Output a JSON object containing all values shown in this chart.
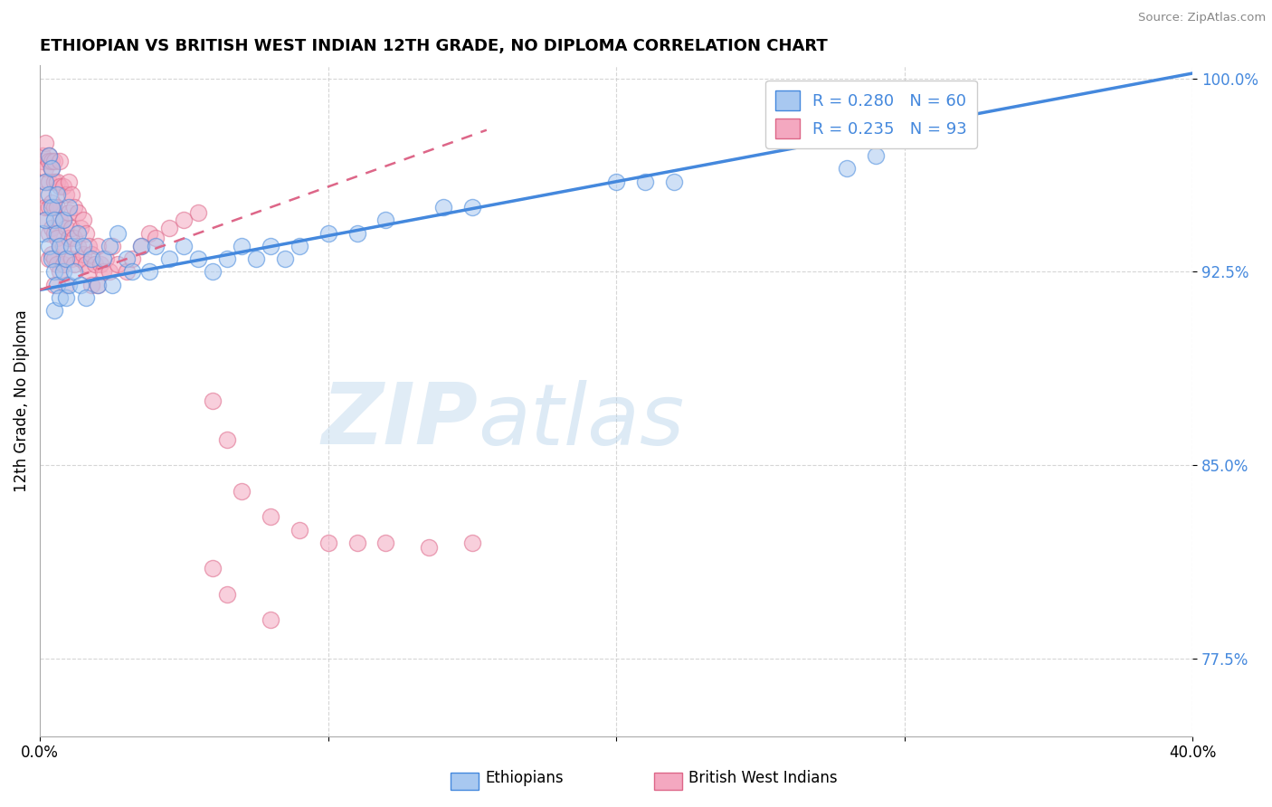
{
  "title": "ETHIOPIAN VS BRITISH WEST INDIAN 12TH GRADE, NO DIPLOMA CORRELATION CHART",
  "source": "Source: ZipAtlas.com",
  "xlabel_ethiopians": "Ethiopians",
  "xlabel_bwi": "British West Indians",
  "ylabel": "12th Grade, No Diploma",
  "xlim": [
    0.0,
    0.4
  ],
  "ylim": [
    0.745,
    1.005
  ],
  "xticks": [
    0.0,
    0.1,
    0.2,
    0.3,
    0.4
  ],
  "xtick_labels": [
    "0.0%",
    "",
    "",
    "",
    "40.0%"
  ],
  "ytick_labels": [
    "77.5%",
    "85.0%",
    "92.5%",
    "100.0%"
  ],
  "yticks": [
    0.775,
    0.85,
    0.925,
    1.0
  ],
  "R_ethiopian": 0.28,
  "N_ethiopian": 60,
  "R_bwi": 0.235,
  "N_bwi": 93,
  "ethiopian_color": "#A8C8F0",
  "bwi_color": "#F4A8C0",
  "trendline_ethiopian_color": "#4488DD",
  "trendline_bwi_color": "#DD6688",
  "watermark_zip": "ZIP",
  "watermark_atlas": "atlas",
  "grid_color": "#CCCCCC",
  "background_color": "#FFFFFF",
  "eth_trendline_x0": 0.0,
  "eth_trendline_y0": 0.918,
  "eth_trendline_x1": 0.4,
  "eth_trendline_y1": 1.002,
  "bwi_trendline_x0": 0.0,
  "bwi_trendline_y0": 0.918,
  "bwi_trendline_x1": 0.155,
  "bwi_trendline_y1": 0.98,
  "ethiopian_scatter_x": [
    0.001,
    0.002,
    0.002,
    0.003,
    0.003,
    0.003,
    0.004,
    0.004,
    0.004,
    0.005,
    0.005,
    0.005,
    0.006,
    0.006,
    0.006,
    0.007,
    0.007,
    0.008,
    0.008,
    0.009,
    0.009,
    0.01,
    0.01,
    0.011,
    0.012,
    0.013,
    0.014,
    0.015,
    0.016,
    0.018,
    0.02,
    0.022,
    0.024,
    0.025,
    0.027,
    0.03,
    0.032,
    0.035,
    0.038,
    0.04,
    0.045,
    0.05,
    0.055,
    0.06,
    0.065,
    0.07,
    0.075,
    0.08,
    0.085,
    0.09,
    0.1,
    0.11,
    0.12,
    0.14,
    0.15,
    0.2,
    0.21,
    0.22,
    0.28,
    0.29
  ],
  "ethiopian_scatter_y": [
    0.94,
    0.96,
    0.945,
    0.97,
    0.955,
    0.935,
    0.965,
    0.95,
    0.93,
    0.945,
    0.925,
    0.91,
    0.955,
    0.94,
    0.92,
    0.935,
    0.915,
    0.945,
    0.925,
    0.93,
    0.915,
    0.95,
    0.92,
    0.935,
    0.925,
    0.94,
    0.92,
    0.935,
    0.915,
    0.93,
    0.92,
    0.93,
    0.935,
    0.92,
    0.94,
    0.93,
    0.925,
    0.935,
    0.925,
    0.935,
    0.93,
    0.935,
    0.93,
    0.925,
    0.93,
    0.935,
    0.93,
    0.935,
    0.93,
    0.935,
    0.94,
    0.94,
    0.945,
    0.95,
    0.95,
    0.96,
    0.96,
    0.96,
    0.965,
    0.97
  ],
  "bwi_scatter_x": [
    0.001,
    0.001,
    0.001,
    0.002,
    0.002,
    0.002,
    0.002,
    0.002,
    0.003,
    0.003,
    0.003,
    0.003,
    0.003,
    0.003,
    0.004,
    0.004,
    0.004,
    0.004,
    0.004,
    0.005,
    0.005,
    0.005,
    0.005,
    0.005,
    0.005,
    0.006,
    0.006,
    0.006,
    0.006,
    0.007,
    0.007,
    0.007,
    0.007,
    0.007,
    0.008,
    0.008,
    0.008,
    0.008,
    0.009,
    0.009,
    0.009,
    0.009,
    0.01,
    0.01,
    0.01,
    0.011,
    0.011,
    0.011,
    0.012,
    0.012,
    0.012,
    0.013,
    0.013,
    0.014,
    0.014,
    0.015,
    0.015,
    0.016,
    0.016,
    0.017,
    0.017,
    0.018,
    0.018,
    0.019,
    0.02,
    0.02,
    0.021,
    0.022,
    0.023,
    0.024,
    0.025,
    0.027,
    0.03,
    0.032,
    0.035,
    0.038,
    0.04,
    0.045,
    0.05,
    0.055,
    0.06,
    0.065,
    0.07,
    0.08,
    0.09,
    0.1,
    0.11,
    0.12,
    0.135,
    0.15,
    0.06,
    0.065,
    0.08
  ],
  "bwi_scatter_y": [
    0.968,
    0.955,
    0.97,
    0.975,
    0.96,
    0.945,
    0.965,
    0.95,
    0.97,
    0.96,
    0.95,
    0.94,
    0.93,
    0.968,
    0.965,
    0.952,
    0.942,
    0.932,
    0.968,
    0.96,
    0.95,
    0.94,
    0.93,
    0.92,
    0.968,
    0.96,
    0.95,
    0.938,
    0.928,
    0.958,
    0.945,
    0.935,
    0.925,
    0.968,
    0.958,
    0.945,
    0.935,
    0.928,
    0.955,
    0.942,
    0.93,
    0.92,
    0.96,
    0.948,
    0.938,
    0.955,
    0.942,
    0.93,
    0.95,
    0.938,
    0.928,
    0.948,
    0.935,
    0.942,
    0.93,
    0.945,
    0.932,
    0.94,
    0.928,
    0.935,
    0.925,
    0.932,
    0.92,
    0.928,
    0.935,
    0.92,
    0.928,
    0.925,
    0.93,
    0.925,
    0.935,
    0.928,
    0.925,
    0.93,
    0.935,
    0.94,
    0.938,
    0.942,
    0.945,
    0.948,
    0.875,
    0.86,
    0.84,
    0.83,
    0.825,
    0.82,
    0.82,
    0.82,
    0.818,
    0.82,
    0.81,
    0.8,
    0.79
  ]
}
